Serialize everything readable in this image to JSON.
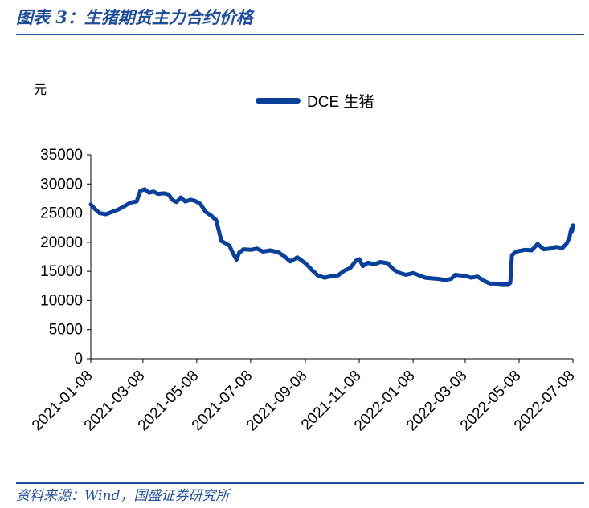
{
  "header": {
    "title": "图表 3：生猪期货主力合约价格"
  },
  "footer": {
    "source": "资料来源：Wind，国盛证券研究所"
  },
  "chart_data": {
    "type": "line",
    "ylabel": "元",
    "ylim": [
      0,
      35000
    ],
    "yticks": [
      0,
      5000,
      10000,
      15000,
      20000,
      25000,
      30000,
      35000
    ],
    "xticks": [
      "2021-01-08",
      "2021-03-08",
      "2021-05-08",
      "2021-07-08",
      "2021-09-08",
      "2021-11-08",
      "2022-01-08",
      "2022-03-08",
      "2022-05-08",
      "2022-07-08"
    ],
    "grid": false,
    "legend_position": "top-center",
    "colors": {
      "line": "#0a3f9a",
      "title": "#1f4e9a"
    },
    "series": [
      {
        "name": "DCE 生猪",
        "points": [
          [
            "2021-01-08",
            26500
          ],
          [
            "2021-01-12",
            25800
          ],
          [
            "2021-01-18",
            25000
          ],
          [
            "2021-01-25",
            24800
          ],
          [
            "2021-02-01",
            25200
          ],
          [
            "2021-02-08",
            25600
          ],
          [
            "2021-02-15",
            26200
          ],
          [
            "2021-02-22",
            26800
          ],
          [
            "2021-03-01",
            27000
          ],
          [
            "2021-03-05",
            28800
          ],
          [
            "2021-03-10",
            29100
          ],
          [
            "2021-03-15",
            28500
          ],
          [
            "2021-03-20",
            28700
          ],
          [
            "2021-03-25",
            28300
          ],
          [
            "2021-04-01",
            28400
          ],
          [
            "2021-04-06",
            28200
          ],
          [
            "2021-04-10",
            27300
          ],
          [
            "2021-04-15",
            26900
          ],
          [
            "2021-04-20",
            27700
          ],
          [
            "2021-04-25",
            27000
          ],
          [
            "2021-05-01",
            27300
          ],
          [
            "2021-05-06",
            27100
          ],
          [
            "2021-05-12",
            26600
          ],
          [
            "2021-05-18",
            25200
          ],
          [
            "2021-05-24",
            24600
          ],
          [
            "2021-05-30",
            23800
          ],
          [
            "2021-06-05",
            20200
          ],
          [
            "2021-06-10",
            19800
          ],
          [
            "2021-06-14",
            19400
          ],
          [
            "2021-06-18",
            18100
          ],
          [
            "2021-06-22",
            17000
          ],
          [
            "2021-06-25",
            18200
          ],
          [
            "2021-06-30",
            18800
          ],
          [
            "2021-07-08",
            18700
          ],
          [
            "2021-07-15",
            18900
          ],
          [
            "2021-07-22",
            18400
          ],
          [
            "2021-07-30",
            18600
          ],
          [
            "2021-08-08",
            18300
          ],
          [
            "2021-08-15",
            17600
          ],
          [
            "2021-08-22",
            16700
          ],
          [
            "2021-08-30",
            17400
          ],
          [
            "2021-09-08",
            16400
          ],
          [
            "2021-09-15",
            15300
          ],
          [
            "2021-09-22",
            14300
          ],
          [
            "2021-09-30",
            13900
          ],
          [
            "2021-10-08",
            14200
          ],
          [
            "2021-10-15",
            14300
          ],
          [
            "2021-10-22",
            15100
          ],
          [
            "2021-10-29",
            15600
          ],
          [
            "2021-11-04",
            16800
          ],
          [
            "2021-11-08",
            17100
          ],
          [
            "2021-11-12",
            15900
          ],
          [
            "2021-11-18",
            16500
          ],
          [
            "2021-11-25",
            16200
          ],
          [
            "2021-12-02",
            16600
          ],
          [
            "2021-12-10",
            16400
          ],
          [
            "2021-12-17",
            15300
          ],
          [
            "2021-12-24",
            14700
          ],
          [
            "2021-12-31",
            14400
          ],
          [
            "2022-01-08",
            14700
          ],
          [
            "2022-01-15",
            14300
          ],
          [
            "2022-01-22",
            13900
          ],
          [
            "2022-01-29",
            13800
          ],
          [
            "2022-02-06",
            13700
          ],
          [
            "2022-02-13",
            13500
          ],
          [
            "2022-02-20",
            13700
          ],
          [
            "2022-02-25",
            14400
          ],
          [
            "2022-03-02",
            14300
          ],
          [
            "2022-03-08",
            14200
          ],
          [
            "2022-03-15",
            13900
          ],
          [
            "2022-03-22",
            14100
          ],
          [
            "2022-03-29",
            13400
          ],
          [
            "2022-04-05",
            12900
          ],
          [
            "2022-04-12",
            12900
          ],
          [
            "2022-04-19",
            12800
          ],
          [
            "2022-04-26",
            12800
          ],
          [
            "2022-04-28",
            13000
          ],
          [
            "2022-04-30",
            17800
          ],
          [
            "2022-05-04",
            18300
          ],
          [
            "2022-05-08",
            18500
          ],
          [
            "2022-05-15",
            18700
          ],
          [
            "2022-05-22",
            18600
          ],
          [
            "2022-05-29",
            19700
          ],
          [
            "2022-06-05",
            18800
          ],
          [
            "2022-06-12",
            18900
          ],
          [
            "2022-06-19",
            19200
          ],
          [
            "2022-06-26",
            19000
          ],
          [
            "2022-07-01",
            19800
          ],
          [
            "2022-07-04",
            20800
          ],
          [
            "2022-07-06",
            22300
          ],
          [
            "2022-07-07",
            21900
          ],
          [
            "2022-07-08",
            22900
          ]
        ]
      }
    ]
  }
}
